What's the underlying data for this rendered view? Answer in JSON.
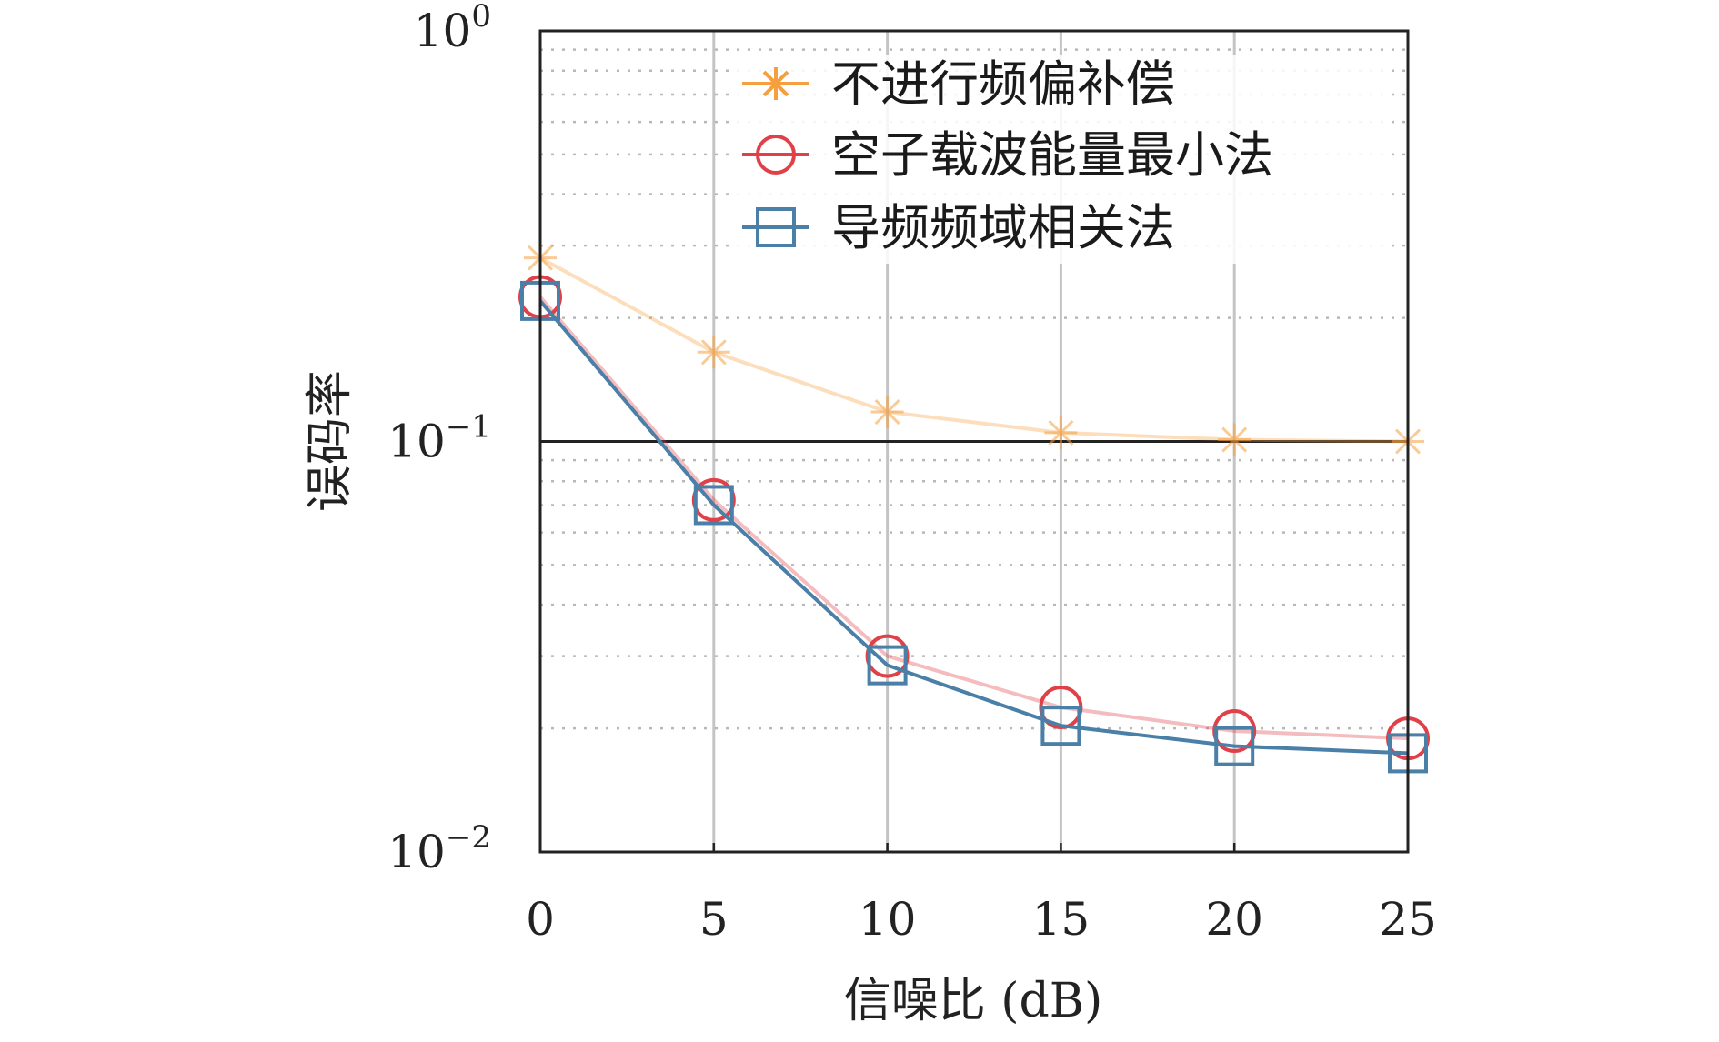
{
  "chart_data": {
    "type": "line",
    "xlabel": "信噪比 (dB)",
    "ylabel": "误码率",
    "x": [
      0,
      5,
      10,
      15,
      20,
      25
    ],
    "x_ticks": [
      "0",
      "5",
      "10",
      "15",
      "20",
      "25"
    ],
    "xlim": [
      0,
      25
    ],
    "y_scale": "log",
    "ylim": [
      0.01,
      1
    ],
    "y_ticks": [
      {
        "base": "10",
        "exp": "0"
      },
      {
        "base": "10",
        "exp": "−1"
      },
      {
        "base": "10",
        "exp": "−2"
      }
    ],
    "grid": true,
    "legend_position": "top-right",
    "series": [
      {
        "name": "不进行频偏补偿",
        "marker": "asterisk",
        "color": "#F5A040",
        "values": [
          0.28,
          0.165,
          0.118,
          0.105,
          0.101,
          0.1
        ]
      },
      {
        "name": "空子载波能量最小法",
        "marker": "circle",
        "color": "#E04048",
        "values": [
          0.225,
          0.072,
          0.03,
          0.0225,
          0.0197,
          0.0189
        ]
      },
      {
        "name": "导频频域相关法",
        "marker": "square",
        "color": "#4A7FA8",
        "values": [
          0.22,
          0.07,
          0.0285,
          0.0203,
          0.0181,
          0.0174
        ]
      }
    ]
  }
}
